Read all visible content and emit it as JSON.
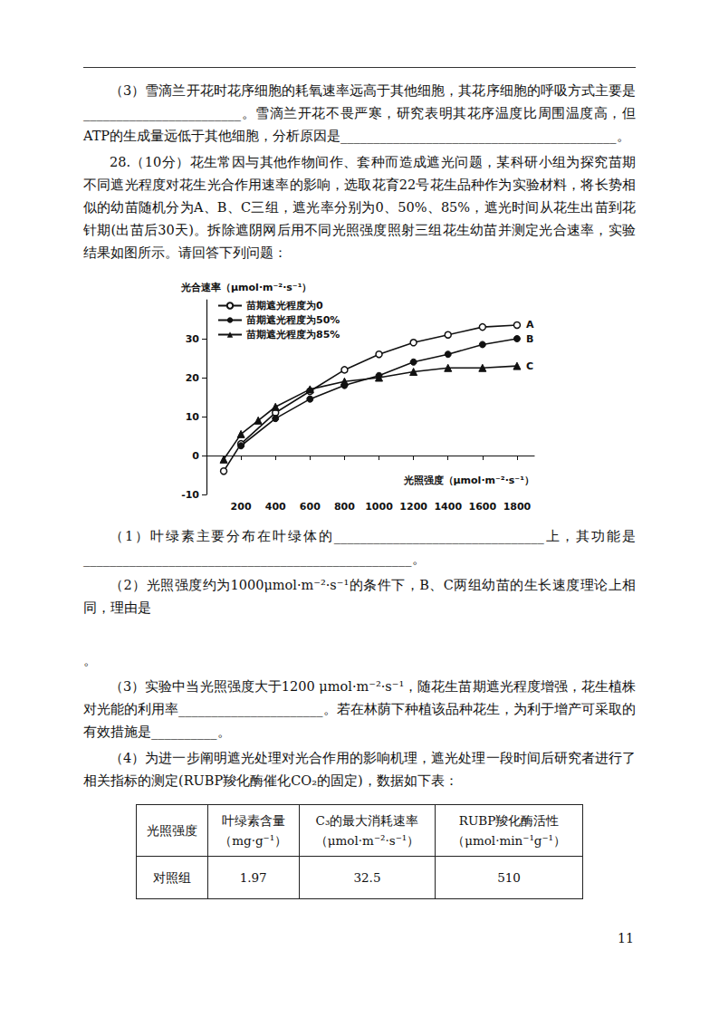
{
  "before_chart": [
    "（3）雪滴兰开花时花序细胞的耗氧速率远高于其他细胞，其花序细胞的呼吸方式主要是________________________。雪滴兰开花不畏严寒，研究表明其花序温度比周围温度高，但ATP的生成量远低于其他细胞，分析原因是__________________________________________。",
    "28.（10分）花生常因与其他作物间作、套种而造成遮光问题，某科研小组为探究苗期不同遮光程度对花生光合作用速率的影响，选取花育22号花生品种作为实验材料，将长势相似的幼苗随机分为A、B、C三组，遮光率分别为0、50%、85%，遮光时间从花生出苗到花针期(出苗后30天)。拆除遮阴网后用不同光照强度照射三组花生幼苗并测定光合速率，实验结果如图所示。请回答下列问题："
  ],
  "chart_data": {
    "type": "line",
    "y_label": "光合速率（μmol·m⁻²·s⁻¹）",
    "x_label": "光照强度（μmol·m⁻²·s⁻¹）",
    "xlim": [
      0,
      1900
    ],
    "xticks": [
      200,
      400,
      600,
      800,
      1000,
      1200,
      1400,
      1600,
      1800
    ],
    "ylim": [
      -10,
      40
    ],
    "yticks": [
      -10,
      0,
      10,
      20,
      30
    ],
    "grid": false,
    "legend": "upper left",
    "series": [
      {
        "name": "苗期遮光程度为0",
        "end_label": "A",
        "color": "#111111",
        "marker": "open_circle",
        "x": [
          100,
          200,
          400,
          600,
          800,
          1000,
          1200,
          1400,
          1600,
          1800
        ],
        "values": [
          -4,
          3,
          11,
          16.5,
          22,
          26,
          29,
          31,
          33,
          33.5
        ]
      },
      {
        "name": "苗期遮光程度为50%",
        "end_label": "B",
        "color": "#111111",
        "marker": "circle",
        "x": [
          200,
          400,
          600,
          800,
          1000,
          1200,
          1400,
          1600,
          1800
        ],
        "values": [
          2.5,
          9.5,
          14.5,
          18,
          20.5,
          24,
          26,
          28.5,
          30
        ]
      },
      {
        "name": "苗期遮光程度为85%",
        "end_label": "C",
        "color": "#111111",
        "marker": "triangle",
        "x": [
          100,
          200,
          300,
          400,
          600,
          800,
          1000,
          1200,
          1400,
          1600,
          1800
        ],
        "values": [
          -1,
          5.5,
          9,
          12.5,
          17,
          19,
          20,
          21.5,
          22.5,
          22.5,
          23
        ]
      }
    ]
  },
  "after_chart": [
    "（1）叶绿素主要分布在叶绿体的________________________________上，其功能是__________________________________________________。",
    "（2）光照强度约为1000μmol·m⁻²·s⁻¹的条件下，B、C两组幼苗的生长速度理论上相同，理由是",
    "",
    "。",
    "（3）实验中当光照强度大于1200 μmol·m⁻²·s⁻¹，随花生苗期遮光程度增强，花生植株对光能的利用率______________________。若在林荫下种植该品种花生，为利于增产可采取的有效措施是__________。",
    "（4）为进一步阐明遮光处理对光合作用的影响机理，遮光处理一段时间后研究者进行了相关指标的测定(RUBP羧化酶催化CO₂的固定)，数据如下表："
  ],
  "table": {
    "header": [
      [
        "光照强度"
      ],
      [
        "叶绿素含量",
        "（mg·g⁻¹）"
      ],
      [
        "C₃的最大消耗速率",
        "（μmol·m⁻²·s⁻¹）"
      ],
      [
        "RUBP羧化酶活性",
        "（μmol·min⁻¹g⁻¹）"
      ]
    ],
    "rows": [
      [
        "对照组",
        "1.97",
        "32.5",
        "510"
      ]
    ]
  },
  "page_number": "11"
}
